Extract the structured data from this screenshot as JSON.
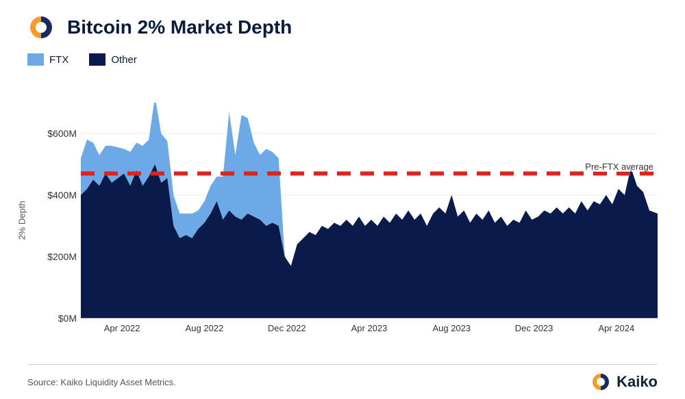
{
  "title": "Bitcoin 2% Market Depth",
  "legend": [
    {
      "label": "FTX",
      "color": "#6ca9e6"
    },
    {
      "label": "Other",
      "color": "#0a1a4a"
    }
  ],
  "logo_colors": {
    "left": "#f39c2c",
    "right": "#1a2a5a"
  },
  "brand_text": "Kaiko",
  "source": "Source: Kaiko Liquidity Asset Metrics.",
  "chart": {
    "type": "stacked-area",
    "ylabel": "2% Depth",
    "ylim": [
      0,
      700
    ],
    "yticks": [
      0,
      200,
      400,
      600
    ],
    "ytick_labels": [
      "$0M",
      "$200M",
      "$400M",
      "$600M"
    ],
    "ytick_fontsize": 14,
    "xlabel_fontsize": 13,
    "x_range": [
      0,
      28
    ],
    "xticks": [
      2,
      6,
      10,
      14,
      18,
      22,
      26
    ],
    "xtick_labels": [
      "Apr 2022",
      "Aug 2022",
      "Dec 2022",
      "Apr 2023",
      "Aug 2023",
      "Dec 2023",
      "Apr 2024"
    ],
    "background": "#ffffff",
    "grid_color": "#e3e3e3",
    "reference_line": {
      "value": 470,
      "color": "#d9241f",
      "dash": "8,6",
      "label": "Pre-FTX average",
      "width": 2
    },
    "series": [
      {
        "name": "Other",
        "color": "#0a1a4a",
        "data": [
          [
            0,
            400
          ],
          [
            0.3,
            420
          ],
          [
            0.6,
            450
          ],
          [
            0.9,
            430
          ],
          [
            1.2,
            470
          ],
          [
            1.5,
            440
          ],
          [
            1.8,
            455
          ],
          [
            2.1,
            470
          ],
          [
            2.4,
            430
          ],
          [
            2.7,
            480
          ],
          [
            3.0,
            430
          ],
          [
            3.3,
            460
          ],
          [
            3.6,
            500
          ],
          [
            3.9,
            440
          ],
          [
            4.2,
            455
          ],
          [
            4.5,
            300
          ],
          [
            4.8,
            260
          ],
          [
            5.1,
            270
          ],
          [
            5.4,
            260
          ],
          [
            5.7,
            290
          ],
          [
            6.0,
            310
          ],
          [
            6.3,
            340
          ],
          [
            6.6,
            380
          ],
          [
            6.9,
            320
          ],
          [
            7.2,
            350
          ],
          [
            7.5,
            330
          ],
          [
            7.8,
            320
          ],
          [
            8.1,
            340
          ],
          [
            8.4,
            330
          ],
          [
            8.7,
            320
          ],
          [
            9.0,
            300
          ],
          [
            9.3,
            310
          ],
          [
            9.6,
            300
          ],
          [
            9.9,
            200
          ],
          [
            10.2,
            170
          ],
          [
            10.5,
            240
          ],
          [
            10.8,
            260
          ],
          [
            11.1,
            280
          ],
          [
            11.4,
            270
          ],
          [
            11.7,
            300
          ],
          [
            12.0,
            290
          ],
          [
            12.3,
            310
          ],
          [
            12.6,
            300
          ],
          [
            12.9,
            320
          ],
          [
            13.2,
            300
          ],
          [
            13.5,
            330
          ],
          [
            13.8,
            300
          ],
          [
            14.1,
            320
          ],
          [
            14.4,
            300
          ],
          [
            14.7,
            330
          ],
          [
            15.0,
            310
          ],
          [
            15.3,
            340
          ],
          [
            15.6,
            320
          ],
          [
            15.9,
            350
          ],
          [
            16.2,
            320
          ],
          [
            16.5,
            340
          ],
          [
            16.8,
            300
          ],
          [
            17.1,
            340
          ],
          [
            17.4,
            360
          ],
          [
            17.7,
            340
          ],
          [
            18.0,
            400
          ],
          [
            18.3,
            330
          ],
          [
            18.6,
            350
          ],
          [
            18.9,
            310
          ],
          [
            19.2,
            340
          ],
          [
            19.5,
            320
          ],
          [
            19.8,
            350
          ],
          [
            20.1,
            310
          ],
          [
            20.4,
            330
          ],
          [
            20.7,
            300
          ],
          [
            21.0,
            320
          ],
          [
            21.3,
            310
          ],
          [
            21.6,
            350
          ],
          [
            21.9,
            320
          ],
          [
            22.2,
            330
          ],
          [
            22.5,
            350
          ],
          [
            22.8,
            340
          ],
          [
            23.1,
            360
          ],
          [
            23.4,
            340
          ],
          [
            23.7,
            360
          ],
          [
            24.0,
            340
          ],
          [
            24.3,
            380
          ],
          [
            24.6,
            350
          ],
          [
            24.9,
            380
          ],
          [
            25.2,
            370
          ],
          [
            25.5,
            400
          ],
          [
            25.8,
            370
          ],
          [
            26.1,
            420
          ],
          [
            26.4,
            400
          ],
          [
            26.7,
            490
          ],
          [
            27.0,
            430
          ],
          [
            27.3,
            410
          ],
          [
            27.6,
            350
          ],
          [
            28.0,
            340
          ]
        ]
      },
      {
        "name": "FTX",
        "color": "#6ca9e6",
        "data": [
          [
            0,
            120
          ],
          [
            0.3,
            160
          ],
          [
            0.6,
            120
          ],
          [
            0.9,
            100
          ],
          [
            1.2,
            90
          ],
          [
            1.5,
            120
          ],
          [
            1.8,
            100
          ],
          [
            2.1,
            80
          ],
          [
            2.4,
            110
          ],
          [
            2.7,
            90
          ],
          [
            3.0,
            130
          ],
          [
            3.3,
            120
          ],
          [
            3.6,
            220
          ],
          [
            3.9,
            160
          ],
          [
            4.2,
            120
          ],
          [
            4.5,
            100
          ],
          [
            4.8,
            80
          ],
          [
            5.1,
            70
          ],
          [
            5.4,
            80
          ],
          [
            5.7,
            60
          ],
          [
            6.0,
            70
          ],
          [
            6.3,
            90
          ],
          [
            6.6,
            80
          ],
          [
            6.9,
            140
          ],
          [
            7.2,
            320
          ],
          [
            7.5,
            200
          ],
          [
            7.8,
            340
          ],
          [
            8.1,
            310
          ],
          [
            8.4,
            240
          ],
          [
            8.7,
            210
          ],
          [
            9.0,
            250
          ],
          [
            9.3,
            230
          ],
          [
            9.6,
            220
          ],
          [
            9.9,
            0
          ],
          [
            10.2,
            0
          ],
          [
            10.5,
            0
          ],
          [
            10.8,
            0
          ],
          [
            11.1,
            0
          ],
          [
            11.4,
            0
          ],
          [
            11.7,
            0
          ],
          [
            12.0,
            0
          ],
          [
            12.3,
            0
          ],
          [
            12.6,
            0
          ],
          [
            12.9,
            0
          ],
          [
            13.2,
            0
          ],
          [
            13.5,
            0
          ],
          [
            13.8,
            0
          ],
          [
            14.1,
            0
          ],
          [
            14.4,
            0
          ],
          [
            14.7,
            0
          ],
          [
            15.0,
            0
          ],
          [
            15.3,
            0
          ],
          [
            15.6,
            0
          ],
          [
            15.9,
            0
          ],
          [
            16.2,
            0
          ],
          [
            16.5,
            0
          ],
          [
            16.8,
            0
          ],
          [
            17.1,
            0
          ],
          [
            17.4,
            0
          ],
          [
            17.7,
            0
          ],
          [
            18.0,
            0
          ],
          [
            18.3,
            0
          ],
          [
            18.6,
            0
          ],
          [
            18.9,
            0
          ],
          [
            19.2,
            0
          ],
          [
            19.5,
            0
          ],
          [
            19.8,
            0
          ],
          [
            20.1,
            0
          ],
          [
            20.4,
            0
          ],
          [
            20.7,
            0
          ],
          [
            21.0,
            0
          ],
          [
            21.3,
            0
          ],
          [
            21.6,
            0
          ],
          [
            21.9,
            0
          ],
          [
            22.2,
            0
          ],
          [
            22.5,
            0
          ],
          [
            22.8,
            0
          ],
          [
            23.1,
            0
          ],
          [
            23.4,
            0
          ],
          [
            23.7,
            0
          ],
          [
            24.0,
            0
          ],
          [
            24.3,
            0
          ],
          [
            24.6,
            0
          ],
          [
            24.9,
            0
          ],
          [
            25.2,
            0
          ],
          [
            25.5,
            0
          ],
          [
            25.8,
            0
          ],
          [
            26.1,
            0
          ],
          [
            26.4,
            0
          ],
          [
            26.7,
            0
          ],
          [
            27.0,
            0
          ],
          [
            27.3,
            0
          ],
          [
            27.6,
            0
          ],
          [
            28.0,
            0
          ]
        ]
      }
    ]
  }
}
